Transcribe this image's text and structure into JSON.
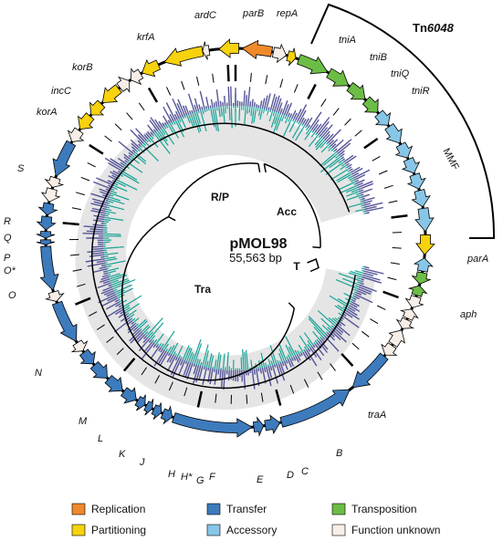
{
  "plasmid": {
    "name": "pMOL98",
    "size": "55,563 bp"
  },
  "transposon": {
    "prefix": "Tn",
    "number": "6048"
  },
  "mmf_label": "MMF",
  "regions": {
    "rp": "R/P",
    "acc": "Acc",
    "tra": "Tra",
    "t": "T"
  },
  "genes": {
    "ardC": "ardC",
    "parB": "parB",
    "repA": "repA",
    "krfA": "krfA",
    "tniA": "tniA",
    "tniB": "tniB",
    "tniQ": "tniQ",
    "tniR": "tniR",
    "korB": "korB",
    "incC": "incC",
    "korA": "korA",
    "S": "S",
    "R": "R",
    "Q": "Q",
    "P": "P",
    "Ostar": "O*",
    "O": "O",
    "N": "N",
    "M": "M",
    "L": "L",
    "K": "K",
    "J": "J",
    "H": "H",
    "Hstar": "H*",
    "G": "G",
    "F": "F",
    "E": "E",
    "D": "D",
    "C": "C",
    "B": "B",
    "traA": "traA",
    "parA": "parA",
    "aph": "aph"
  },
  "legend": [
    {
      "label": "Replication",
      "color": "#f0892a"
    },
    {
      "label": "Partitioning",
      "color": "#f7d20d"
    },
    {
      "label": "Transfer",
      "color": "#3d7bbd"
    },
    {
      "label": "Accessory",
      "color": "#88c6e8"
    },
    {
      "label": "Transposition",
      "color": "#6cbd45"
    },
    {
      "label": "Function unknown",
      "color": "#f7eee7"
    }
  ],
  "colors": {
    "replication": "#f0892a",
    "partitioning": "#f7d20d",
    "transfer": "#3d7bbd",
    "accessory": "#88c6e8",
    "transposition": "#6cbd45",
    "unknown": "#f7eee7",
    "gc_skew_band": "#e5e5e5",
    "gc_content": "#555599",
    "gc_skew": "#17a396"
  }
}
